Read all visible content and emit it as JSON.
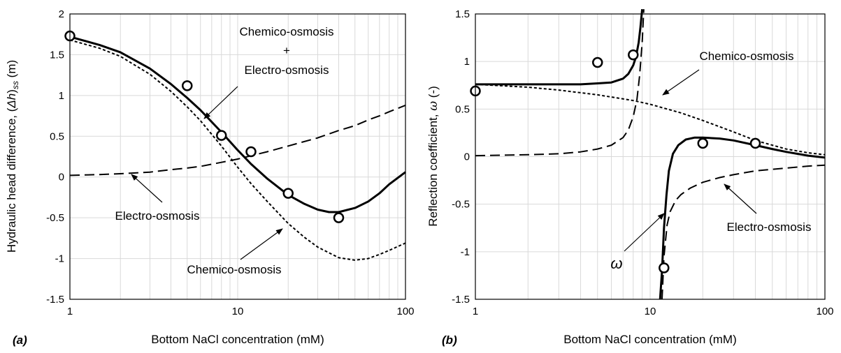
{
  "chart_data": [
    {
      "panel_label_letter": "a",
      "type": "line",
      "xscale": "log",
      "xlim": [
        1,
        100
      ],
      "ylim": [
        -1.5,
        2
      ],
      "xticks": [
        "1",
        "10",
        "100"
      ],
      "yticks": [
        "2",
        "1.5",
        "1",
        "0.5",
        "0",
        "-0.5",
        "-1",
        "-1.5"
      ],
      "xlabel": "Bottom NaCl concentration (mM)",
      "ylabel_main": "Hydraulic head difference, (",
      "ylabel_var": "Δh",
      "ylabel_close": ")",
      "ylabel_sub": "ss",
      "ylabel_unit": " (m)",
      "series": [
        {
          "style": "solid",
          "x": [
            1,
            1.5,
            2,
            3,
            4,
            5,
            6,
            8,
            10,
            12,
            15,
            20,
            25,
            30,
            35,
            40,
            50,
            60,
            70,
            80,
            100
          ],
          "y": [
            1.72,
            1.62,
            1.53,
            1.33,
            1.14,
            0.97,
            0.82,
            0.55,
            0.33,
            0.16,
            -0.02,
            -0.22,
            -0.33,
            -0.4,
            -0.43,
            -0.43,
            -0.38,
            -0.3,
            -0.2,
            -0.09,
            0.06
          ]
        },
        {
          "style": "short-dash",
          "x": [
            1,
            1.5,
            2,
            3,
            4,
            5,
            6,
            8,
            10,
            12,
            15,
            20,
            25,
            30,
            40,
            50,
            60,
            70,
            80,
            100
          ],
          "y": [
            1.68,
            1.58,
            1.48,
            1.26,
            1.05,
            0.86,
            0.69,
            0.38,
            0.12,
            -0.08,
            -0.3,
            -0.57,
            -0.74,
            -0.86,
            -0.99,
            -1.02,
            -1.0,
            -0.95,
            -0.9,
            -0.81
          ]
        },
        {
          "style": "long-dash",
          "x": [
            1,
            1.5,
            2,
            3,
            4,
            5,
            6,
            8,
            10,
            12,
            15,
            20,
            30,
            40,
            50,
            60,
            70,
            80,
            100
          ],
          "y": [
            0.02,
            0.03,
            0.04,
            0.06,
            0.09,
            0.11,
            0.13,
            0.18,
            0.22,
            0.26,
            0.31,
            0.38,
            0.48,
            0.57,
            0.63,
            0.7,
            0.75,
            0.8,
            0.88
          ]
        },
        {
          "style": "markers",
          "x": [
            1,
            5,
            8,
            12,
            20,
            40
          ],
          "y": [
            1.73,
            1.12,
            0.51,
            0.31,
            -0.2,
            -0.5
          ]
        }
      ],
      "annotations": [
        {
          "lines": [
            "Chemico-osmosis",
            "+",
            "Electro-osmosis"
          ],
          "arrow_to": [
            6.5,
            0.82
          ]
        },
        {
          "lines": [
            "Electro-osmosis"
          ],
          "arrow_to": [
            2,
            0.04
          ]
        },
        {
          "lines": [
            "Chemico-osmosis"
          ],
          "arrow_to": [
            12,
            -0.66
          ]
        }
      ]
    },
    {
      "panel_label_letter": "b",
      "type": "line",
      "xscale": "log",
      "xlim": [
        1,
        100
      ],
      "ylim": [
        -1.5,
        1.5
      ],
      "xticks": [
        "1",
        "10",
        "100"
      ],
      "yticks": [
        "1.5",
        "1",
        "0.5",
        "0",
        "-0.5",
        "-1",
        "-1.5"
      ],
      "xlabel": "Bottom NaCl concentration (mM)",
      "ylabel_main": "Reflection coefficient, ",
      "ylabel_var": "ω",
      "ylabel_unit": " (-)",
      "series": [
        {
          "style": "solid",
          "x": [
            1,
            2,
            3,
            4,
            5,
            6,
            7,
            7.5,
            8,
            8.3,
            8.6,
            8.8,
            9.0
          ],
          "y": [
            0.76,
            0.76,
            0.76,
            0.76,
            0.77,
            0.78,
            0.82,
            0.87,
            0.96,
            1.05,
            1.2,
            1.36,
            1.55
          ]
        },
        {
          "style": "solid",
          "x": [
            11.4,
            11.7,
            12.0,
            12.4,
            12.8,
            13.5,
            14.5,
            16,
            18,
            20,
            25,
            30,
            40,
            50,
            60,
            80,
            100
          ],
          "y": [
            -1.5,
            -1.2,
            -0.75,
            -0.4,
            -0.15,
            0.03,
            0.12,
            0.18,
            0.2,
            0.2,
            0.19,
            0.17,
            0.12,
            0.08,
            0.05,
            0.01,
            -0.01
          ]
        },
        {
          "style": "short-dash",
          "x": [
            1,
            2,
            3,
            5,
            8,
            10,
            15,
            20,
            30,
            40,
            60,
            80,
            100
          ],
          "y": [
            0.76,
            0.73,
            0.7,
            0.65,
            0.59,
            0.55,
            0.46,
            0.38,
            0.26,
            0.17,
            0.08,
            0.04,
            0.02
          ]
        },
        {
          "style": "long-dash",
          "x": [
            1,
            2,
            3,
            4,
            5,
            6,
            7,
            7.5,
            8,
            8.4,
            8.7,
            9.0,
            9.2
          ],
          "y": [
            0.01,
            0.02,
            0.03,
            0.05,
            0.08,
            0.12,
            0.2,
            0.28,
            0.42,
            0.6,
            0.85,
            1.2,
            1.55
          ]
        },
        {
          "style": "long-dash",
          "x": [
            11.7,
            12.0,
            12.5,
            13,
            14,
            15,
            17,
            20,
            25,
            30,
            40,
            60,
            80,
            100
          ],
          "y": [
            -1.5,
            -1.05,
            -0.72,
            -0.58,
            -0.46,
            -0.4,
            -0.33,
            -0.27,
            -0.22,
            -0.19,
            -0.15,
            -0.12,
            -0.1,
            -0.09
          ]
        },
        {
          "style": "markers",
          "x": [
            1,
            5,
            8,
            12,
            20,
            40
          ],
          "y": [
            0.69,
            0.99,
            1.07,
            -1.17,
            0.14,
            0.14
          ]
        }
      ],
      "annotations": [
        {
          "lines": [
            "Chemico-osmosis"
          ],
          "arrow_to": [
            8.5,
            0.6
          ]
        },
        {
          "lines": [
            "ω"
          ],
          "arrow_to": [
            11.5,
            -0.5
          ]
        },
        {
          "lines": [
            "Electro-osmosis"
          ],
          "arrow_to": [
            16,
            -0.28
          ]
        }
      ]
    }
  ]
}
